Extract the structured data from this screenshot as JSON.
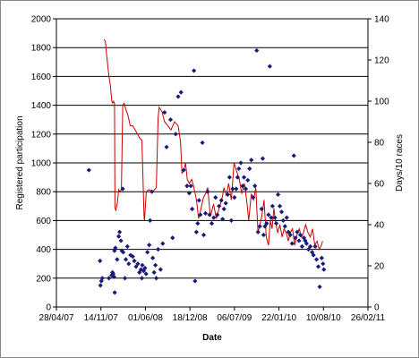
{
  "chart_data": {
    "type": "scatter",
    "title": "",
    "xlabel": "Date",
    "ylabel": "Registered participation",
    "y2label": "Days/10 races",
    "x_tick_labels": [
      "28/04/07",
      "14/11/07",
      "01/06/08",
      "18/12/08",
      "06/07/09",
      "22/01/10",
      "10/08/10",
      "26/02/11"
    ],
    "x_tick_dates": [
      "2007-04-28",
      "2007-11-14",
      "2008-06-01",
      "2008-12-18",
      "2009-07-06",
      "2010-01-22",
      "2010-08-10",
      "2011-02-26"
    ],
    "xlim": [
      "2007-04-28",
      "2011-02-26"
    ],
    "ylim": [
      0,
      2000
    ],
    "y_ticks": [
      0,
      200,
      400,
      600,
      800,
      1000,
      1200,
      1400,
      1600,
      1800,
      2000
    ],
    "y2lim": [
      0,
      140
    ],
    "y2_ticks": [
      0,
      20,
      40,
      60,
      80,
      100,
      120,
      140
    ],
    "grid": "horizontal",
    "series": [
      {
        "axis": "left",
        "marker": "diamond",
        "color": "#1a1a7a",
        "points": [
          [
            "2007-09-21",
            950
          ],
          [
            "2007-11-10",
            320
          ],
          [
            "2007-11-12",
            150
          ],
          [
            "2007-11-16",
            180
          ],
          [
            "2007-11-20",
            200
          ],
          [
            "2007-12-20",
            200
          ],
          [
            "2008-01-01",
            220
          ],
          [
            "2008-01-05",
            240
          ],
          [
            "2008-01-08",
            230
          ],
          [
            "2008-01-12",
            210
          ],
          [
            "2008-01-14",
            390
          ],
          [
            "2008-01-18",
            410
          ],
          [
            "2008-01-15",
            100
          ],
          [
            "2008-01-26",
            330
          ],
          [
            "2008-02-02",
            490
          ],
          [
            "2008-02-06",
            520
          ],
          [
            "2008-02-12",
            460
          ],
          [
            "2008-02-16",
            390
          ],
          [
            "2008-02-22",
            380
          ],
          [
            "2008-02-20",
            820
          ],
          [
            "2008-03-01",
            200
          ],
          [
            "2008-03-05",
            330
          ],
          [
            "2008-03-12",
            420
          ],
          [
            "2008-03-18",
            300
          ],
          [
            "2008-03-26",
            360
          ],
          [
            "2008-04-05",
            350
          ],
          [
            "2008-04-12",
            320
          ],
          [
            "2008-04-20",
            280
          ],
          [
            "2008-04-28",
            300
          ],
          [
            "2008-05-05",
            240
          ],
          [
            "2008-05-12",
            260
          ],
          [
            "2008-05-16",
            200
          ],
          [
            "2008-05-18",
            290
          ],
          [
            "2008-05-24",
            250
          ],
          [
            "2008-05-30",
            270
          ],
          [
            "2008-06-04",
            230
          ],
          [
            "2008-06-10",
            380
          ],
          [
            "2008-06-18",
            430
          ],
          [
            "2008-06-22",
            600
          ],
          [
            "2008-06-30",
            800
          ],
          [
            "2008-07-04",
            340
          ],
          [
            "2008-07-10",
            240
          ],
          [
            "2008-07-16",
            290
          ],
          [
            "2008-07-20",
            200
          ],
          [
            "2008-07-28",
            400
          ],
          [
            "2008-08-08",
            260
          ],
          [
            "2008-08-18",
            440
          ],
          [
            "2008-08-26",
            1350
          ],
          [
            "2008-09-04",
            1110
          ],
          [
            "2008-09-22",
            1300
          ],
          [
            "2008-10-01",
            480
          ],
          [
            "2008-10-15",
            1200
          ],
          [
            "2008-10-26",
            1460
          ],
          [
            "2008-11-08",
            1490
          ],
          [
            "2008-11-20",
            950
          ],
          [
            "2008-12-05",
            840
          ],
          [
            "2008-12-15",
            790
          ],
          [
            "2008-12-22",
            840
          ],
          [
            "2008-12-28",
            680
          ],
          [
            "2009-01-05",
            1640
          ],
          [
            "2009-01-10",
            180
          ],
          [
            "2009-01-16",
            520
          ],
          [
            "2009-01-22",
            580
          ],
          [
            "2009-01-28",
            740
          ],
          [
            "2009-02-03",
            640
          ],
          [
            "2009-02-12",
            1140
          ],
          [
            "2009-02-18",
            500
          ],
          [
            "2009-02-26",
            650
          ],
          [
            "2009-03-08",
            800
          ],
          [
            "2009-03-16",
            640
          ],
          [
            "2009-03-26",
            580
          ],
          [
            "2009-04-04",
            620
          ],
          [
            "2009-04-12",
            760
          ],
          [
            "2009-04-20",
            640
          ],
          [
            "2009-04-28",
            700
          ],
          [
            "2009-05-08",
            740
          ],
          [
            "2009-05-14",
            610
          ],
          [
            "2009-05-20",
            680
          ],
          [
            "2009-05-28",
            720
          ],
          [
            "2009-06-06",
            780
          ],
          [
            "2009-06-14",
            900
          ],
          [
            "2009-06-22",
            600
          ],
          [
            "2009-06-28",
            820
          ],
          [
            "2009-07-06",
            760
          ],
          [
            "2009-07-14",
            820
          ],
          [
            "2009-07-20",
            900
          ],
          [
            "2009-07-26",
            960
          ],
          [
            "2009-08-04",
            1000
          ],
          [
            "2009-08-12",
            840
          ],
          [
            "2009-08-18",
            900
          ],
          [
            "2009-08-26",
            820
          ],
          [
            "2009-09-04",
            880
          ],
          [
            "2009-09-12",
            960
          ],
          [
            "2009-09-20",
            1020
          ],
          [
            "2009-09-28",
            760
          ],
          [
            "2009-10-06",
            840
          ],
          [
            "2009-10-14",
            1780
          ],
          [
            "2009-10-20",
            520
          ],
          [
            "2009-10-28",
            560
          ],
          [
            "2009-11-05",
            680
          ],
          [
            "2009-11-10",
            1030
          ],
          [
            "2009-11-14",
            500
          ],
          [
            "2009-11-20",
            560
          ],
          [
            "2009-11-28",
            580
          ],
          [
            "2009-12-06",
            640
          ],
          [
            "2009-12-12",
            1670
          ],
          [
            "2009-12-18",
            620
          ],
          [
            "2009-12-24",
            700
          ],
          [
            "2010-01-04",
            620
          ],
          [
            "2010-01-10",
            580
          ],
          [
            "2010-01-18",
            780
          ],
          [
            "2010-01-26",
            700
          ],
          [
            "2010-02-03",
            660
          ],
          [
            "2010-02-10",
            600
          ],
          [
            "2010-02-18",
            560
          ],
          [
            "2010-02-26",
            620
          ],
          [
            "2010-03-06",
            520
          ],
          [
            "2010-03-14",
            500
          ],
          [
            "2010-03-22",
            440
          ],
          [
            "2010-03-30",
            1050
          ],
          [
            "2010-04-06",
            480
          ],
          [
            "2010-04-14",
            520
          ],
          [
            "2010-04-22",
            460
          ],
          [
            "2010-04-28",
            500
          ],
          [
            "2010-05-06",
            420
          ],
          [
            "2010-05-14",
            480
          ],
          [
            "2010-05-20",
            460
          ],
          [
            "2010-05-26",
            440
          ],
          [
            "2010-06-04",
            400
          ],
          [
            "2010-06-12",
            420
          ],
          [
            "2010-06-20",
            380
          ],
          [
            "2010-06-26",
            360
          ],
          [
            "2010-07-04",
            420
          ],
          [
            "2010-07-10",
            330
          ],
          [
            "2010-07-18",
            280
          ],
          [
            "2010-07-24",
            140
          ],
          [
            "2010-08-02",
            340
          ],
          [
            "2010-08-08",
            300
          ],
          [
            "2010-08-12",
            260
          ]
        ]
      },
      {
        "axis": "right",
        "type": "line",
        "color": "#cc0000",
        "points": [
          [
            "2007-11-28",
            130
          ],
          [
            "2007-12-04",
            129
          ],
          [
            "2007-12-10",
            122
          ],
          [
            "2007-12-20",
            112
          ],
          [
            "2007-12-26",
            108
          ],
          [
            "2008-01-02",
            100
          ],
          [
            "2008-01-06",
            99
          ],
          [
            "2008-01-10",
            100
          ],
          [
            "2008-01-14",
            99
          ],
          [
            "2008-01-16",
            48
          ],
          [
            "2008-01-20",
            47
          ],
          [
            "2008-01-26",
            50
          ],
          [
            "2008-02-02",
            57
          ],
          [
            "2008-02-08",
            56
          ],
          [
            "2008-02-14",
            57
          ],
          [
            "2008-02-20",
            98
          ],
          [
            "2008-02-26",
            99
          ],
          [
            "2008-03-05",
            96
          ],
          [
            "2008-03-15",
            93
          ],
          [
            "2008-03-25",
            88
          ],
          [
            "2008-04-05",
            88
          ],
          [
            "2008-04-16",
            86
          ],
          [
            "2008-04-26",
            84
          ],
          [
            "2008-05-06",
            82
          ],
          [
            "2008-05-16",
            81
          ],
          [
            "2008-05-26",
            44
          ],
          [
            "2008-05-28",
            42
          ],
          [
            "2008-06-05",
            56
          ],
          [
            "2008-06-16",
            57
          ],
          [
            "2008-07-04",
            56
          ],
          [
            "2008-07-20",
            58
          ],
          [
            "2008-07-28",
            92
          ],
          [
            "2008-08-02",
            97
          ],
          [
            "2008-08-14",
            95
          ],
          [
            "2008-08-26",
            90
          ],
          [
            "2008-09-10",
            88
          ],
          [
            "2008-09-24",
            86
          ],
          [
            "2008-10-10",
            90
          ],
          [
            "2008-10-26",
            88
          ],
          [
            "2008-11-06",
            80
          ],
          [
            "2008-11-12",
            65
          ],
          [
            "2008-11-20",
            66
          ],
          [
            "2008-11-28",
            70
          ],
          [
            "2008-12-06",
            62
          ],
          [
            "2008-12-15",
            60
          ],
          [
            "2008-12-26",
            62
          ],
          [
            "2009-01-05",
            58
          ],
          [
            "2009-01-16",
            52
          ],
          [
            "2009-01-26",
            43
          ],
          [
            "2009-02-06",
            48
          ],
          [
            "2009-02-16",
            53
          ],
          [
            "2009-02-26",
            55
          ],
          [
            "2009-03-08",
            58
          ],
          [
            "2009-03-20",
            44
          ],
          [
            "2009-04-03",
            50
          ],
          [
            "2009-04-16",
            43
          ],
          [
            "2009-04-28",
            48
          ],
          [
            "2009-05-10",
            52
          ],
          [
            "2009-05-20",
            58
          ],
          [
            "2009-05-30",
            54
          ],
          [
            "2009-06-10",
            60
          ],
          [
            "2009-06-22",
            52
          ],
          [
            "2009-07-04",
            70
          ],
          [
            "2009-07-16",
            66
          ],
          [
            "2009-07-28",
            62
          ],
          [
            "2009-08-08",
            55
          ],
          [
            "2009-08-20",
            60
          ],
          [
            "2009-09-01",
            50
          ],
          [
            "2009-09-08",
            42
          ],
          [
            "2009-09-20",
            55
          ],
          [
            "2009-09-30",
            52
          ],
          [
            "2009-10-10",
            58
          ],
          [
            "2009-10-20",
            36
          ],
          [
            "2009-10-28",
            40
          ],
          [
            "2009-11-06",
            44
          ],
          [
            "2009-11-16",
            52
          ],
          [
            "2009-11-26",
            34
          ],
          [
            "2009-12-06",
            30
          ],
          [
            "2009-12-14",
            42
          ],
          [
            "2009-12-22",
            38
          ],
          [
            "2009-12-30",
            48
          ],
          [
            "2010-01-06",
            42
          ],
          [
            "2010-01-16",
            36
          ],
          [
            "2010-01-26",
            40
          ],
          [
            "2010-02-05",
            34
          ],
          [
            "2010-02-14",
            38
          ],
          [
            "2010-02-24",
            36
          ],
          [
            "2010-03-05",
            32
          ],
          [
            "2010-03-14",
            36
          ],
          [
            "2010-03-24",
            38
          ],
          [
            "2010-04-03",
            30
          ],
          [
            "2010-04-13",
            35
          ],
          [
            "2010-04-23",
            38
          ],
          [
            "2010-05-03",
            34
          ],
          [
            "2010-05-12",
            36
          ],
          [
            "2010-05-22",
            40
          ],
          [
            "2010-06-02",
            36
          ],
          [
            "2010-06-12",
            34
          ],
          [
            "2010-06-22",
            38
          ],
          [
            "2010-07-02",
            30
          ],
          [
            "2010-07-12",
            32
          ],
          [
            "2010-07-22",
            28
          ],
          [
            "2010-08-01",
            30
          ],
          [
            "2010-08-06",
            32
          ]
        ]
      }
    ]
  }
}
